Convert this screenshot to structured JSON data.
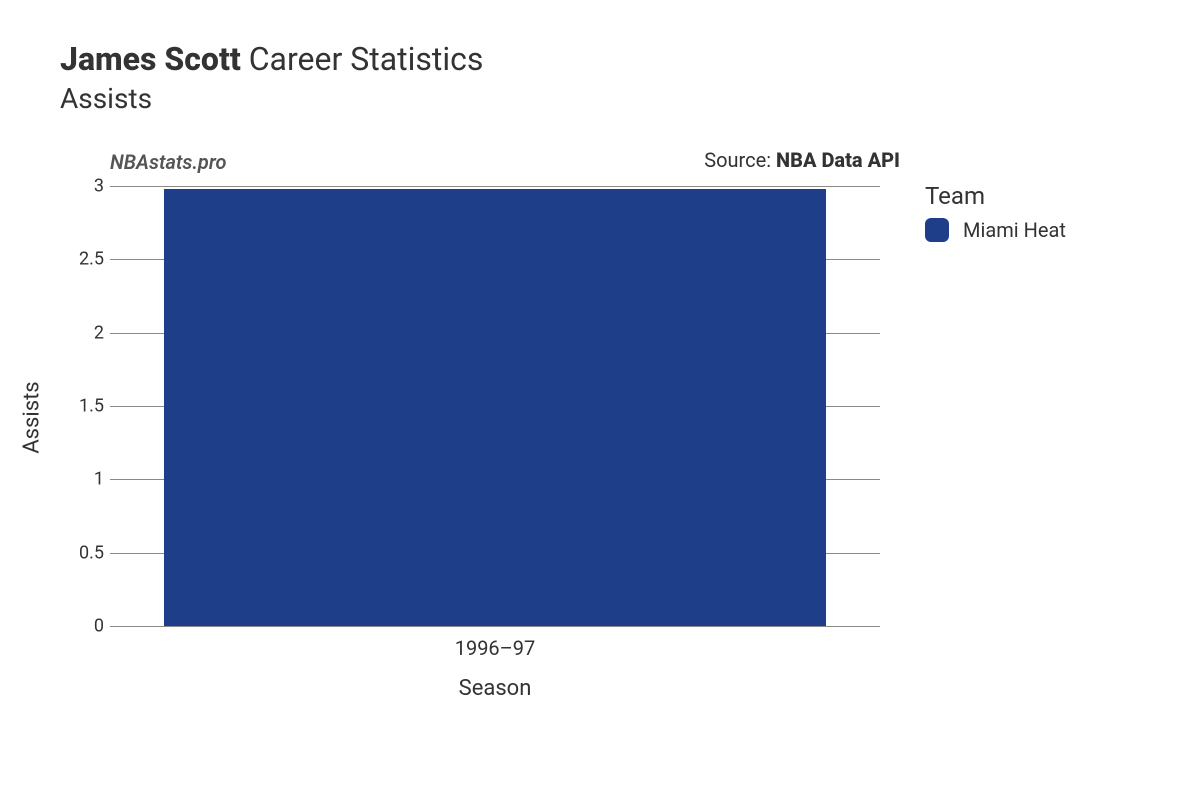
{
  "title": {
    "player_name": "James Scott",
    "suffix": "Career Statistics",
    "metric": "Assists"
  },
  "watermark": "NBAstats.pro",
  "source": {
    "prefix": "Source: ",
    "name": "NBA Data API"
  },
  "chart": {
    "type": "bar",
    "background_color": "#ffffff",
    "grid_color": "#8a8a8a",
    "xlabel": "Season",
    "ylabel": "Assists",
    "xlabel_fontsize": 22,
    "ylabel_fontsize": 22,
    "tick_fontsize": 18,
    "ylim": [
      0,
      3
    ],
    "ytick_step": 0.5,
    "yticks": [
      {
        "value": 0,
        "label": "0"
      },
      {
        "value": 0.5,
        "label": "0.5"
      },
      {
        "value": 1,
        "label": "1"
      },
      {
        "value": 1.5,
        "label": "1.5"
      },
      {
        "value": 2,
        "label": "2"
      },
      {
        "value": 2.5,
        "label": "2.5"
      },
      {
        "value": 3,
        "label": "3"
      }
    ],
    "categories": [
      "1996–97"
    ],
    "series": [
      {
        "team": "Miami Heat",
        "color": "#1f3e8a",
        "values": [
          2.98
        ]
      }
    ],
    "bar_width": 0.86
  },
  "legend": {
    "title": "Team",
    "items": [
      {
        "label": "Miami Heat",
        "color": "#1f3e8a"
      }
    ]
  }
}
